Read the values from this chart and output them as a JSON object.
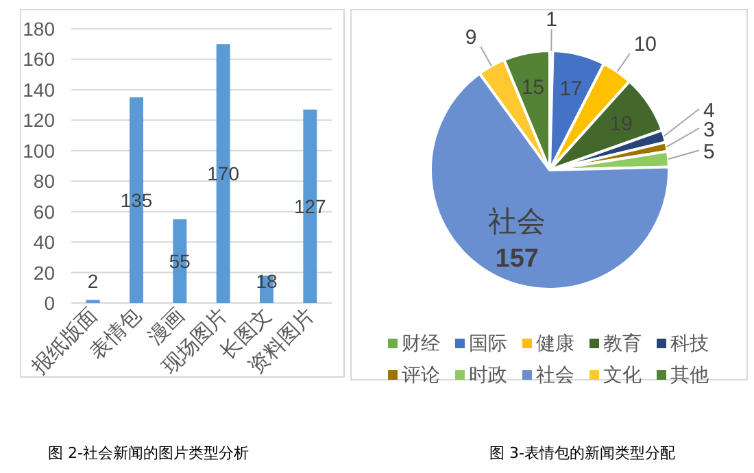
{
  "chart_data": [
    {
      "type": "bar",
      "categories": [
        "报纸版面",
        "表情包",
        "漫画",
        "现场图片",
        "长图文",
        "资料图片"
      ],
      "values": [
        2,
        135,
        55,
        170,
        18,
        127
      ],
      "color": "#5b9bd5",
      "ylim": [
        0,
        180
      ],
      "yticks": [
        0,
        20,
        40,
        60,
        80,
        100,
        120,
        140,
        160,
        180
      ],
      "grid": "y",
      "data_labels": true,
      "annotations": [
        "图 2-社会新闻的图片类型分析"
      ]
    },
    {
      "type": "pie",
      "categories": [
        "财经",
        "国际",
        "健康",
        "教育",
        "科技",
        "评论",
        "时政",
        "社会",
        "文化",
        "其他"
      ],
      "values": [
        1,
        17,
        10,
        19,
        4,
        3,
        5,
        157,
        9,
        15
      ],
      "colors": [
        "#70ad47",
        "#4472c4",
        "#ffc000",
        "#43682b",
        "#264478",
        "#9e7400",
        "#8fcb62",
        "#6a8fd0",
        "#ffc830",
        "#548235"
      ],
      "data_labels": true,
      "legend": "bottom",
      "annotations": [
        "图 3-表情包的新闻类型分配"
      ]
    }
  ]
}
